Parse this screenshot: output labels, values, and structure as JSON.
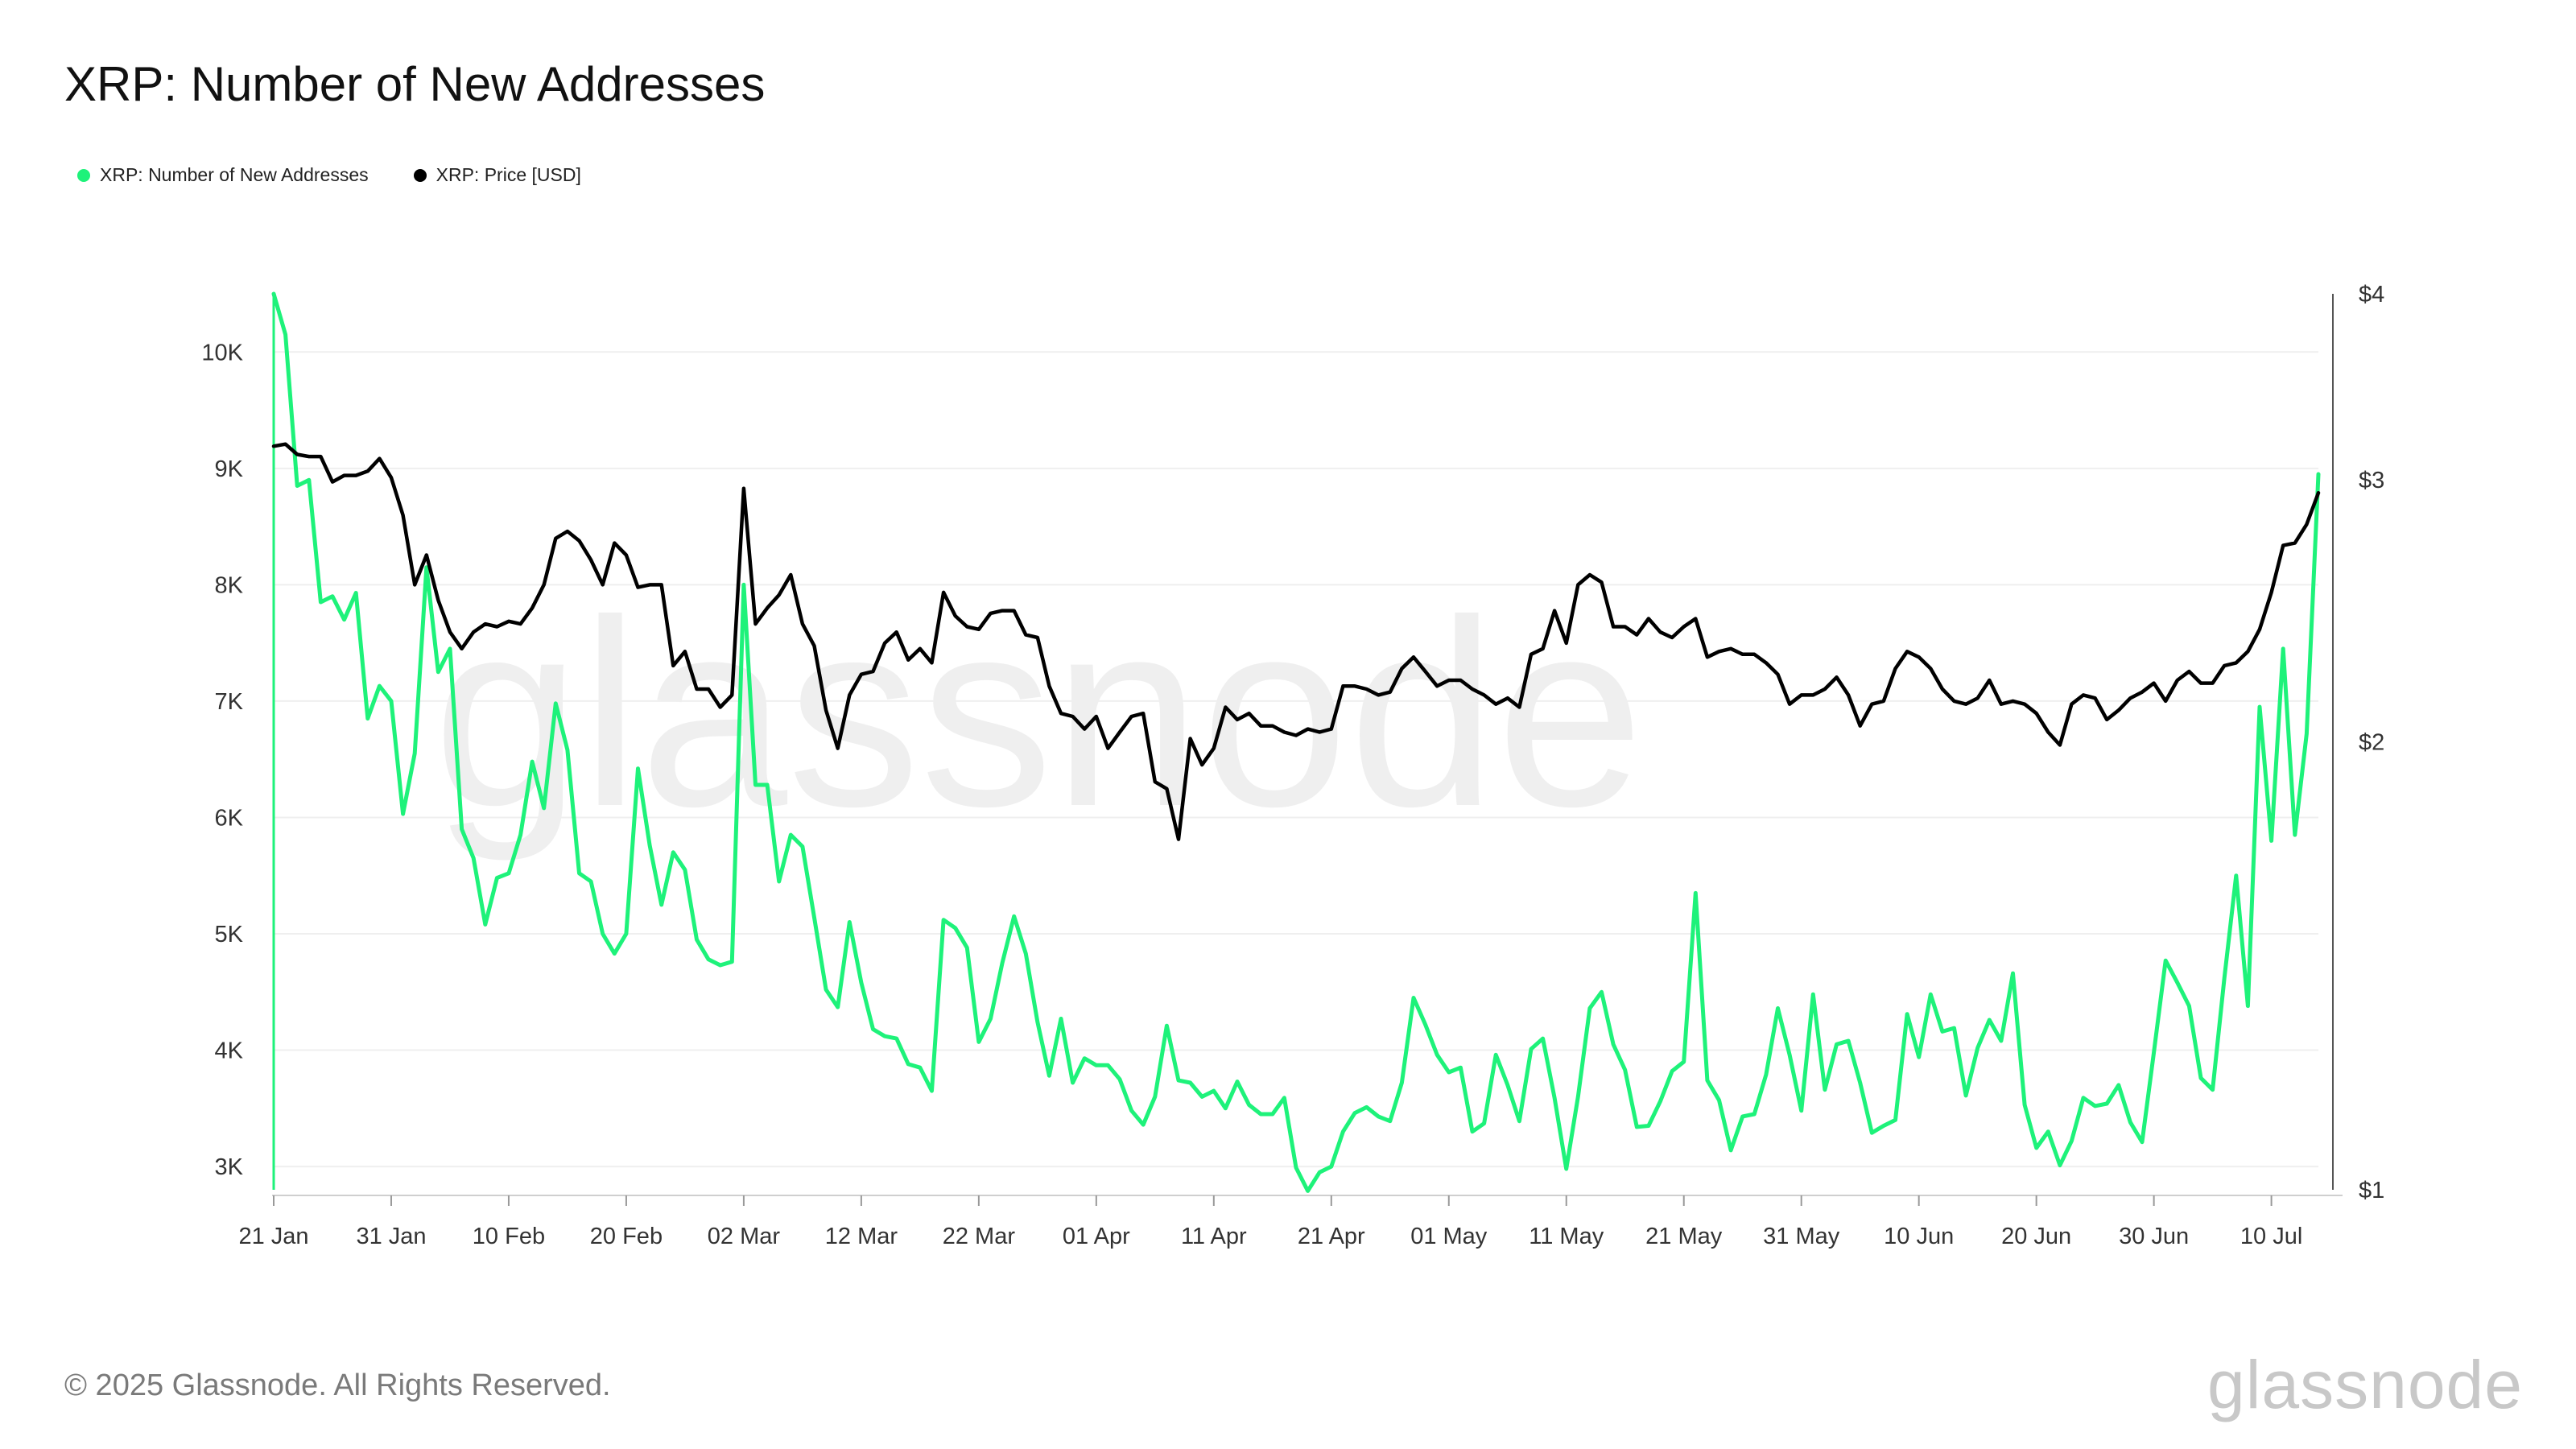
{
  "chart_data": {
    "type": "line",
    "title": "XRP: Number of New Addresses",
    "xlabel": "",
    "ylabel": "",
    "x_ticks": [
      "21 Jan",
      "31 Jan",
      "10 Feb",
      "20 Feb",
      "02 Mar",
      "12 Mar",
      "22 Mar",
      "01 Apr",
      "11 Apr",
      "21 Apr",
      "01 May",
      "11 May",
      "21 May",
      "31 May",
      "10 Jun",
      "20 Jun",
      "30 Jun",
      "10 Jul"
    ],
    "left_axis": {
      "ticks": [
        "3K",
        "4K",
        "5K",
        "6K",
        "7K",
        "8K",
        "9K",
        "10K"
      ],
      "tick_values": [
        3000,
        4000,
        5000,
        6000,
        7000,
        8000,
        9000,
        10000
      ],
      "range": [
        2800,
        10500
      ]
    },
    "right_axis": {
      "ticks": [
        "$1",
        "$2",
        "$3",
        "$4"
      ],
      "tick_values": [
        1,
        2,
        3,
        4
      ],
      "scale": "log",
      "range": [
        1,
        4
      ]
    },
    "grid": "horizontal",
    "legend_position": "top-left",
    "series": [
      {
        "name": "XRP: Number of New Addresses",
        "axis": "left",
        "color": "#1ef27a",
        "start_date": "2025-01-21",
        "step_days": 1,
        "values": [
          10500,
          10150,
          8850,
          8900,
          7850,
          7900,
          7700,
          7930,
          6850,
          7130,
          7000,
          6030,
          6550,
          8150,
          7250,
          7450,
          5900,
          5650,
          5080,
          5480,
          5520,
          5850,
          6480,
          6080,
          6980,
          6580,
          5520,
          5450,
          5000,
          4830,
          5000,
          6420,
          5760,
          5250,
          5700,
          5550,
          4950,
          4780,
          4730,
          4760,
          8000,
          6280,
          6280,
          5450,
          5850,
          5750,
          5140,
          4520,
          4370,
          5100,
          4580,
          4180,
          4120,
          4100,
          3880,
          3850,
          3650,
          5120,
          5050,
          4880,
          4070,
          4270,
          4750,
          5150,
          4830,
          4240,
          3780,
          4270,
          3720,
          3930,
          3870,
          3870,
          3750,
          3480,
          3360,
          3600,
          4210,
          3740,
          3720,
          3600,
          3650,
          3500,
          3730,
          3530,
          3450,
          3450,
          3590,
          2990,
          2790,
          2950,
          3000,
          3300,
          3460,
          3510,
          3430,
          3390,
          3720,
          4450,
          4220,
          3960,
          3810,
          3850,
          3300,
          3370,
          3960,
          3700,
          3390,
          4010,
          4100,
          3590,
          2980,
          3600,
          4360,
          4500,
          4050,
          3830,
          3340,
          3350,
          3560,
          3820,
          3900,
          5350,
          3740,
          3570,
          3140,
          3430,
          3450,
          3790,
          4360,
          3960,
          3480,
          4480,
          3660,
          4050,
          4080,
          3720,
          3290,
          3350,
          3400,
          4310,
          3940,
          4480,
          4160,
          4190,
          3610,
          4020,
          4260,
          4080,
          4660,
          3530,
          3160,
          3300,
          3010,
          3220,
          3590,
          3520,
          3540,
          3700,
          3380,
          3210,
          3980,
          4770,
          4580,
          4380,
          3760,
          3660,
          4620,
          5500,
          4380,
          6950,
          5800,
          7450,
          5850,
          6720,
          8950
        ]
      },
      {
        "name": "XRP: Price [USD]",
        "axis": "right",
        "color": "#000000",
        "start_date": "2025-01-21",
        "step_days": 1,
        "values": [
          3.16,
          3.17,
          3.12,
          3.11,
          3.11,
          2.99,
          3.02,
          3.02,
          3.04,
          3.1,
          3.01,
          2.84,
          2.55,
          2.67,
          2.49,
          2.37,
          2.31,
          2.37,
          2.4,
          2.39,
          2.41,
          2.4,
          2.46,
          2.55,
          2.74,
          2.77,
          2.73,
          2.65,
          2.55,
          2.72,
          2.67,
          2.54,
          2.55,
          2.55,
          2.25,
          2.3,
          2.17,
          2.17,
          2.11,
          2.15,
          2.96,
          2.4,
          2.46,
          2.51,
          2.59,
          2.4,
          2.32,
          2.1,
          1.98,
          2.15,
          2.22,
          2.23,
          2.33,
          2.37,
          2.27,
          2.31,
          2.26,
          2.52,
          2.43,
          2.39,
          2.38,
          2.44,
          2.45,
          2.45,
          2.36,
          2.35,
          2.18,
          2.09,
          2.08,
          2.04,
          2.08,
          1.98,
          2.03,
          2.08,
          2.09,
          1.88,
          1.86,
          1.72,
          2.01,
          1.93,
          1.98,
          2.11,
          2.07,
          2.09,
          2.05,
          2.05,
          2.03,
          2.02,
          2.04,
          2.03,
          2.04,
          2.18,
          2.18,
          2.17,
          2.15,
          2.16,
          2.24,
          2.28,
          2.23,
          2.18,
          2.2,
          2.2,
          2.17,
          2.15,
          2.12,
          2.14,
          2.11,
          2.29,
          2.31,
          2.45,
          2.33,
          2.55,
          2.59,
          2.56,
          2.39,
          2.39,
          2.36,
          2.42,
          2.37,
          2.35,
          2.39,
          2.42,
          2.28,
          2.3,
          2.31,
          2.29,
          2.29,
          2.26,
          2.22,
          2.12,
          2.15,
          2.15,
          2.17,
          2.21,
          2.15,
          2.05,
          2.12,
          2.13,
          2.24,
          2.3,
          2.28,
          2.24,
          2.17,
          2.13,
          2.12,
          2.14,
          2.2,
          2.12,
          2.13,
          2.12,
          2.09,
          2.03,
          1.99,
          2.12,
          2.15,
          2.14,
          2.07,
          2.1,
          2.14,
          2.16,
          2.19,
          2.13,
          2.2,
          2.23,
          2.19,
          2.19,
          2.25,
          2.26,
          2.3,
          2.38,
          2.52,
          2.71,
          2.72,
          2.8,
          2.94
        ]
      }
    ]
  },
  "legend": {
    "items": [
      {
        "label": "XRP: Number of New Addresses",
        "color": "#1ef27a"
      },
      {
        "label": "XRP: Price [USD]",
        "color": "#000000"
      }
    ]
  },
  "watermark": "glassnode",
  "footer": {
    "copyright": "© 2025 Glassnode. All Rights Reserved.",
    "brand": "glassnode"
  }
}
